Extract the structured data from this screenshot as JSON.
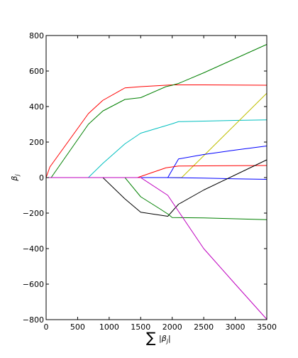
{
  "chart_data": {
    "type": "line",
    "title": "",
    "xlabel": "∑|β_j|",
    "ylabel": "β_j",
    "xlim": [
      0,
      3500
    ],
    "ylim": [
      -800,
      800
    ],
    "x_ticks": [
      0,
      500,
      1000,
      1500,
      2000,
      2500,
      3000,
      3500
    ],
    "y_ticks": [
      -800,
      -600,
      -400,
      -200,
      0,
      200,
      400,
      600,
      800
    ],
    "grid": false,
    "legend": "none",
    "series": [
      {
        "color": "#ff0000",
        "points": [
          [
            0,
            0
          ],
          [
            60,
            60
          ],
          [
            670,
            360
          ],
          [
            900,
            435
          ],
          [
            1250,
            505
          ],
          [
            1500,
            512
          ],
          [
            2000,
            522
          ],
          [
            2500,
            522
          ],
          [
            3000,
            521
          ],
          [
            3500,
            520
          ]
        ]
      },
      {
        "color": "#008000",
        "points": [
          [
            0,
            0
          ],
          [
            80,
            0
          ],
          [
            670,
            300
          ],
          [
            900,
            375
          ],
          [
            1250,
            440
          ],
          [
            1500,
            450
          ],
          [
            1900,
            512
          ],
          [
            2000,
            520
          ],
          [
            2100,
            530
          ],
          [
            2500,
            590
          ],
          [
            3000,
            670
          ],
          [
            3500,
            750
          ]
        ]
      },
      {
        "color": "#00bfbf",
        "points": [
          [
            0,
            0
          ],
          [
            670,
            0
          ],
          [
            900,
            80
          ],
          [
            1250,
            190
          ],
          [
            1500,
            250
          ],
          [
            2000,
            303
          ],
          [
            2100,
            315
          ],
          [
            2500,
            318
          ],
          [
            3000,
            322
          ],
          [
            3500,
            325
          ]
        ]
      },
      {
        "color": "#bfbf00",
        "points": [
          [
            0,
            0
          ],
          [
            2150,
            0
          ],
          [
            3500,
            475
          ]
        ]
      },
      {
        "color": "#0000ff",
        "points": [
          [
            0,
            0
          ],
          [
            1930,
            0
          ],
          [
            2100,
            105
          ],
          [
            2500,
            130
          ],
          [
            3000,
            155
          ],
          [
            3500,
            178
          ]
        ]
      },
      {
        "color": "#ff0000",
        "points": [
          [
            0,
            0
          ],
          [
            1450,
            0
          ],
          [
            1900,
            55
          ],
          [
            2100,
            65
          ],
          [
            2500,
            66
          ],
          [
            3000,
            67
          ],
          [
            3500,
            68
          ]
        ]
      },
      {
        "color": "#0000ff",
        "points": [
          [
            0,
            0
          ],
          [
            1900,
            0
          ],
          [
            2500,
            -3
          ],
          [
            3000,
            -7
          ],
          [
            3500,
            -10
          ]
        ]
      },
      {
        "color": "#000000",
        "points": [
          [
            0,
            0
          ],
          [
            900,
            0
          ],
          [
            1250,
            -120
          ],
          [
            1500,
            -195
          ],
          [
            1930,
            -218
          ],
          [
            2100,
            -150
          ],
          [
            2500,
            -70
          ],
          [
            3000,
            15
          ],
          [
            3500,
            100
          ]
        ]
      },
      {
        "color": "#008000",
        "points": [
          [
            0,
            0
          ],
          [
            1250,
            0
          ],
          [
            1500,
            -108
          ],
          [
            1800,
            -175
          ],
          [
            1930,
            -205
          ],
          [
            2000,
            -225
          ],
          [
            2500,
            -227
          ],
          [
            3000,
            -232
          ],
          [
            3500,
            -237
          ]
        ]
      },
      {
        "color": "#bf00bf",
        "points": [
          [
            0,
            0
          ],
          [
            1500,
            0
          ],
          [
            1930,
            -100
          ],
          [
            2100,
            -190
          ],
          [
            2500,
            -400
          ],
          [
            3000,
            -600
          ],
          [
            3500,
            -798
          ]
        ]
      }
    ]
  }
}
